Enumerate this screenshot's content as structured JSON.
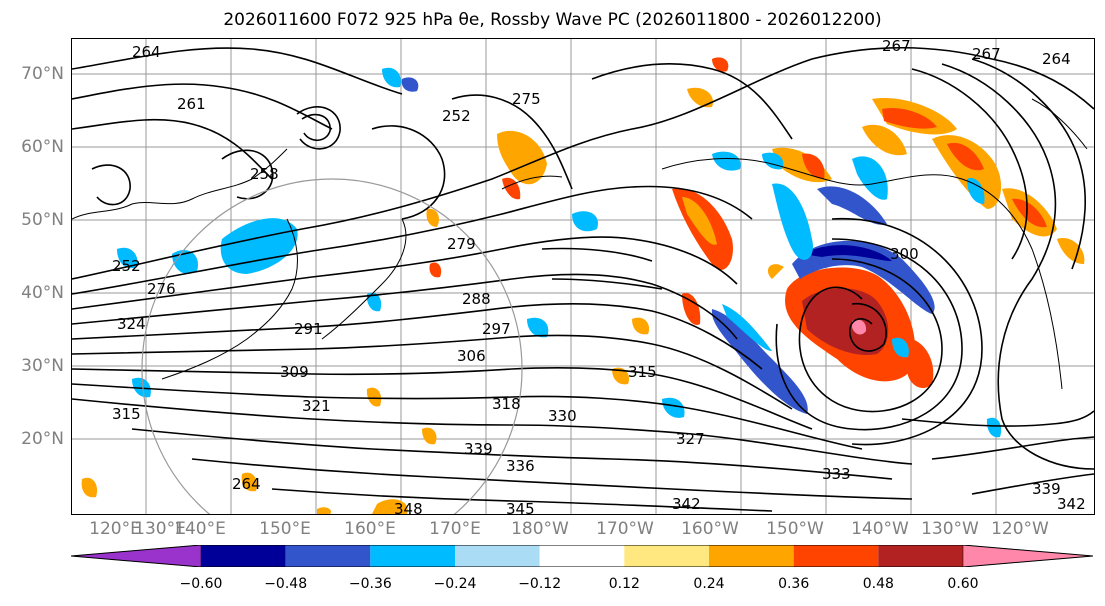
{
  "title": "2026011600 F072 925 hPa θe, Rossby Wave PC (2026011800 - 2026012200)",
  "lat_labels": [
    "70°N",
    "60°N",
    "50°N",
    "40°N",
    "30°N",
    "20°N"
  ],
  "lon_labels": [
    "120°E",
    "130°E",
    "140°E",
    "150°E",
    "160°E",
    "170°E",
    "180°W",
    "170°W",
    "160°W",
    "150°W",
    "140°W",
    "130°W",
    "120°W"
  ],
  "colorbar": {
    "ticks": [
      "−0.60",
      "−0.48",
      "−0.36",
      "−0.24",
      "−0.12",
      "0.12",
      "0.24",
      "0.36",
      "0.48",
      "0.60"
    ],
    "colors": [
      "#9933cc",
      "#000099",
      "#3355cc",
      "#00bbff",
      "#aaddf5",
      "#ffffff",
      "#ffe880",
      "#ffa500",
      "#ff4400",
      "#b22222",
      "#ff88aa"
    ]
  },
  "contour_labels": [
    "264",
    "267",
    "252",
    "275",
    "291",
    "261",
    "279",
    "288",
    "297",
    "306",
    "309",
    "321",
    "339",
    "336",
    "348",
    "345",
    "342",
    "333",
    "327",
    "330",
    "315",
    "300",
    "318",
    "264",
    "267",
    "258",
    "276",
    "252",
    "315",
    "324",
    "339",
    "342",
    "264"
  ],
  "colors": {
    "coast": "#000000",
    "grid": "#999999",
    "contour": "#000000",
    "axis_label": "#808080"
  }
}
